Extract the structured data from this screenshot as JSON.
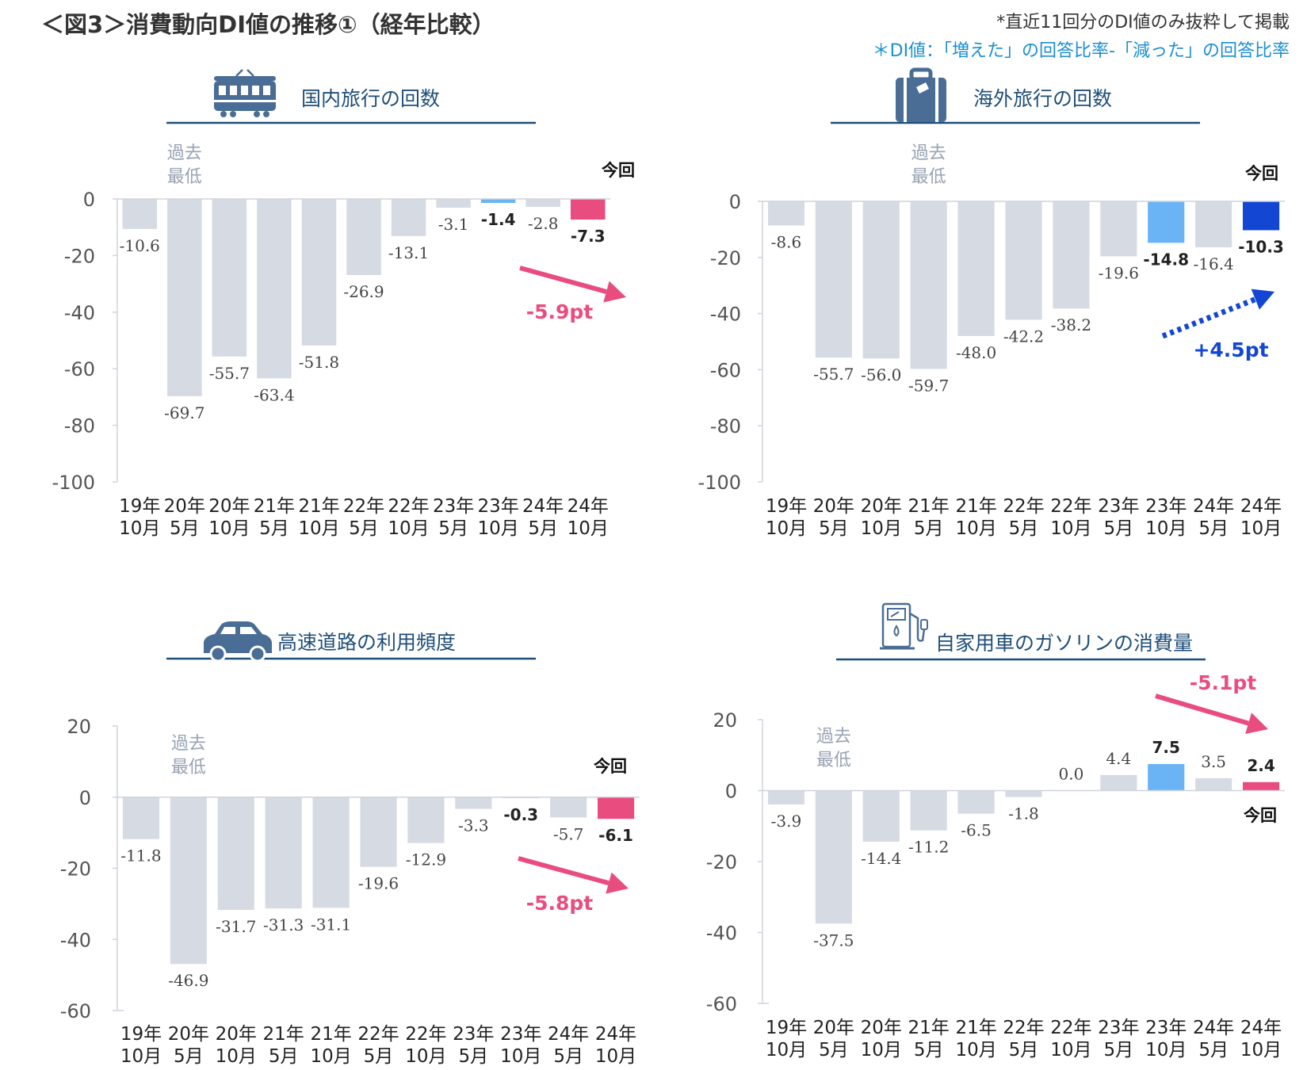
{
  "page": {
    "title": "＜図3＞消費動向DI値の推移①（経年比較）",
    "note1": "*直近11回分のDI値のみ抜粋して掲載",
    "note2": "＊DI値：「増えた」の回答比率-「減った」の回答比率"
  },
  "colors": {
    "default_bar": "#d5dae3",
    "highlight_pink": "#e94c7f",
    "highlight_lightblue": "#6ab4f5",
    "highlight_blue": "#1346d3",
    "title_line": "#1f4e79",
    "icon": "#4a6d96"
  },
  "chart_data": [
    {
      "type": "bar",
      "title": "国内旅行の回数",
      "icon": "train-icon",
      "categories": [
        "19年10月",
        "20年5月",
        "20年10月",
        "21年5月",
        "21年10月",
        "22年5月",
        "22年10月",
        "23年5月",
        "23年10月",
        "24年5月",
        "24年10月"
      ],
      "values": [
        -10.6,
        -69.7,
        -55.7,
        -63.4,
        -51.8,
        -26.9,
        -13.1,
        -3.1,
        -1.4,
        -2.8,
        -7.3
      ],
      "ylim": [
        -100,
        0
      ],
      "yticks": [
        0,
        -20,
        -40,
        -60,
        -80,
        -100
      ],
      "highlights": {
        "8": "lightblue",
        "10": "pink"
      },
      "bold_labels": [
        8,
        10
      ],
      "annotation": {
        "text": "過去\n最低",
        "index": 1
      },
      "konkai_label": "今回",
      "delta": {
        "text": "-5.9pt",
        "color": "pink",
        "style": "solid",
        "direction": "down"
      }
    },
    {
      "type": "bar",
      "title": "海外旅行の回数",
      "icon": "suitcase-icon",
      "categories": [
        "19年10月",
        "20年5月",
        "20年10月",
        "21年5月",
        "21年10月",
        "22年5月",
        "22年10月",
        "23年5月",
        "23年10月",
        "24年5月",
        "24年10月"
      ],
      "values": [
        -8.6,
        -55.7,
        -56.0,
        -59.7,
        -48.0,
        -42.2,
        -38.2,
        -19.6,
        -14.8,
        -16.4,
        -10.3
      ],
      "ylim": [
        -100,
        0
      ],
      "yticks": [
        0,
        -20,
        -40,
        -60,
        -80,
        -100
      ],
      "highlights": {
        "8": "lightblue",
        "10": "blue"
      },
      "bold_labels": [
        8,
        10
      ],
      "annotation": {
        "text": "過去\n最低",
        "index": 3
      },
      "konkai_label": "今回",
      "delta": {
        "text": "+4.5pt",
        "color": "blue",
        "style": "dotted",
        "direction": "up"
      }
    },
    {
      "type": "bar",
      "title": "高速道路の利用頻度",
      "icon": "car-icon",
      "categories": [
        "19年10月",
        "20年5月",
        "20年10月",
        "21年5月",
        "21年10月",
        "22年5月",
        "22年10月",
        "23年5月",
        "23年10月",
        "24年5月",
        "24年10月"
      ],
      "values": [
        -11.8,
        -46.9,
        -31.7,
        -31.3,
        -31.1,
        -19.6,
        -12.9,
        -3.3,
        -0.3,
        -5.7,
        -6.1
      ],
      "ylim": [
        -60,
        20
      ],
      "yticks": [
        20,
        0,
        -20,
        -40,
        -60
      ],
      "highlights": {
        "10": "pink"
      },
      "bold_labels": [
        8,
        10
      ],
      "annotation": {
        "text": "過去\n最低",
        "index": 1
      },
      "konkai_label": "今回",
      "delta": {
        "text": "-5.8pt",
        "color": "pink",
        "style": "solid",
        "direction": "down"
      }
    },
    {
      "type": "bar",
      "title": "自家用車のガソリンの消費量",
      "icon": "gas-pump-icon",
      "categories": [
        "19年10月",
        "20年5月",
        "20年10月",
        "21年5月",
        "21年10月",
        "22年5月",
        "22年10月",
        "23年5月",
        "23年10月",
        "24年5月",
        "24年10月"
      ],
      "values": [
        -3.9,
        -37.5,
        -14.4,
        -11.2,
        -6.5,
        -1.8,
        0.0,
        4.4,
        7.5,
        3.5,
        2.4
      ],
      "ylim": [
        -60,
        20
      ],
      "yticks": [
        20,
        0,
        -20,
        -40,
        -60
      ],
      "highlights": {
        "8": "lightblue",
        "10": "pink"
      },
      "bold_labels": [
        8,
        10
      ],
      "annotation": {
        "text": "過去\n最低",
        "index": 1
      },
      "konkai_label": "今回",
      "delta": {
        "text": "-5.1pt",
        "color": "pink",
        "style": "solid",
        "direction": "down"
      }
    }
  ]
}
